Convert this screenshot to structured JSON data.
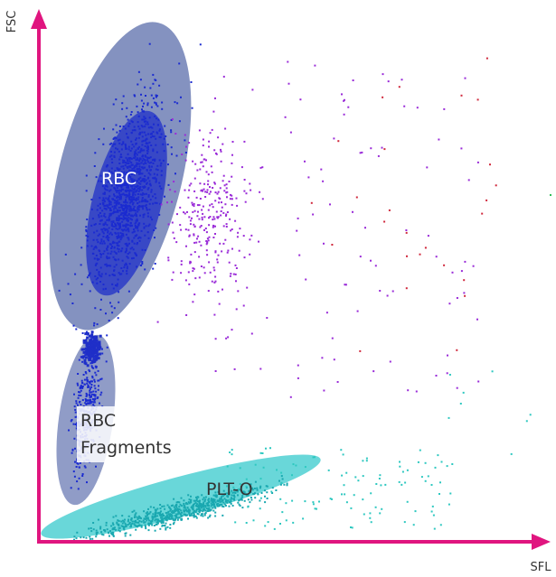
{
  "chart_data": {
    "type": "scatter",
    "title": "",
    "xlabel": "SFL",
    "ylabel": "FSC",
    "ticks": false,
    "grid": false,
    "legend": "none",
    "colors": {
      "axis": "#e0157f",
      "rbc_gate": "#6f7fb5",
      "rbc_core": "#1f2fc8",
      "rbc_events": "#1b2bd0",
      "fragments_gate": "#7c8bbd",
      "plt_gate": "#4fd0d2",
      "plt_events": "#1aa8b0",
      "scatter_purple": "#9a2bd8",
      "scatter_red": "#d0283c",
      "scatter_teal": "#2ec8c0",
      "scatter_green": "#2fbf5a"
    },
    "populations": [
      {
        "id": "rbc",
        "label": "RBC",
        "label_color": "#ffffff"
      },
      {
        "id": "rbc_fragments",
        "label_lines": [
          "RBC",
          "Fragments"
        ],
        "label_color": "#333333"
      },
      {
        "id": "plt_o",
        "label": "PLT-O",
        "label_color": "#333333"
      }
    ]
  }
}
